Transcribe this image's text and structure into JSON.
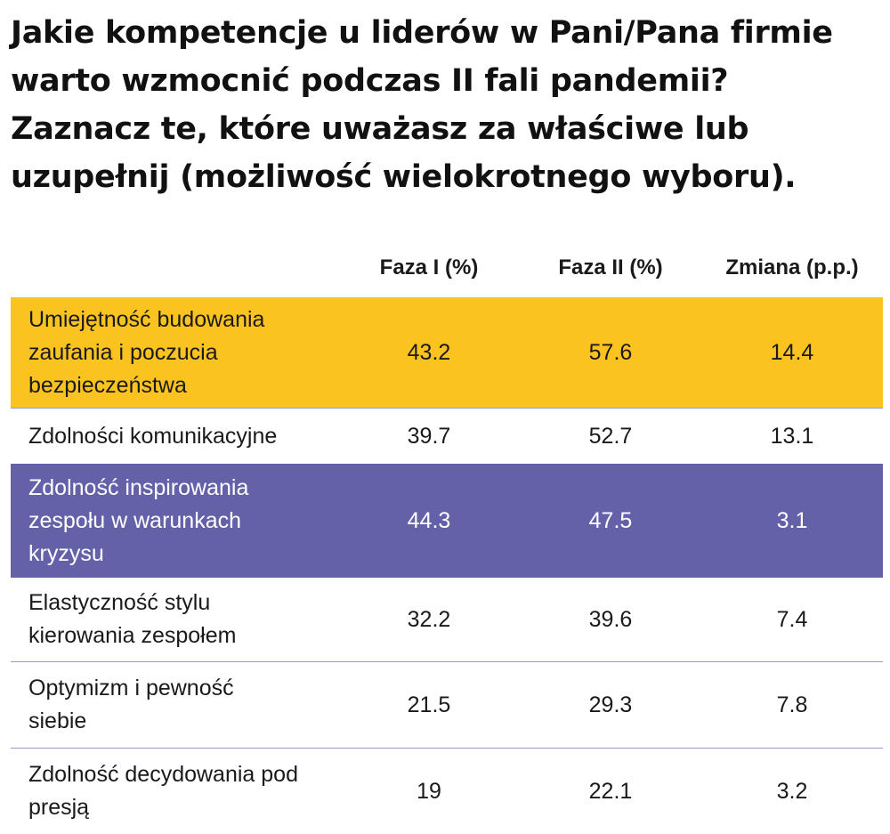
{
  "title": "Jakie kompetencje u liderów w Pani/Pana firmie warto wzmocnić podczas II fali pandemii? Zaznacz te, które uważasz za właściwe lub uzupełnij (możliwość wielokrotnego wyboru).",
  "colors": {
    "highlight_yellow": "#fbc320",
    "highlight_purple": "#6461a8",
    "divider": "#9d98c9"
  },
  "table": {
    "headers": [
      "",
      "Faza I (%)",
      "Faza II (%)",
      "Zmiana (p.p.)"
    ],
    "rows": [
      {
        "label": "Umiejętność budowania zaufania i poczucia bezpieczeństwa",
        "faza1": "43.2",
        "faza2": "57.6",
        "zmiana": "14.4"
      },
      {
        "label": "Zdolności komunikacyjne",
        "faza1": "39.7",
        "faza2": "52.7",
        "zmiana": "13.1"
      },
      {
        "label": "Zdolność inspirowania zespołu w warunkach kryzysu",
        "faza1": "44.3",
        "faza2": "47.5",
        "zmiana": "3.1"
      },
      {
        "label": "Elastyczność stylu kierowania zespołem",
        "faza1": "32.2",
        "faza2": "39.6",
        "zmiana": "7.4"
      },
      {
        "label": "Optymizm i pewność siebie",
        "faza1": "21.5",
        "faza2": "29.3",
        "zmiana": "7.8"
      },
      {
        "label": "Zdolność decydowania pod presją",
        "faza1": "19",
        "faza2": "22.1",
        "zmiana": "3.2"
      }
    ]
  }
}
